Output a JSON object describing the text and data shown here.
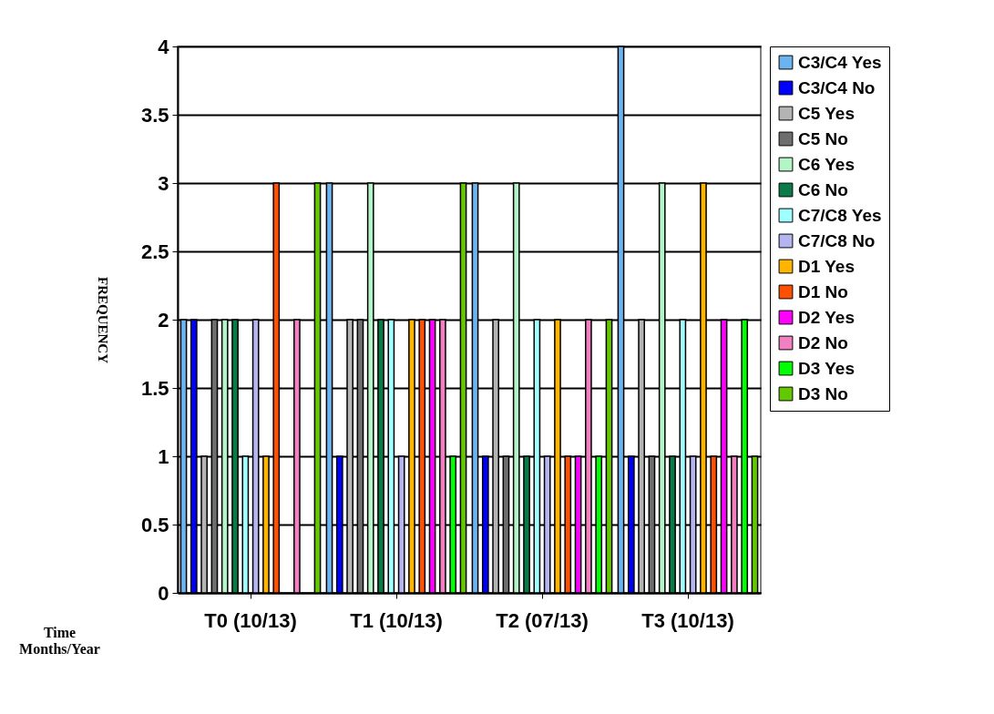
{
  "chart_data": {
    "type": "bar",
    "ylabel": "FREQUENCY",
    "xlabel": "Time\nMonths/Year",
    "categories": [
      "T0 (10/13)",
      "T1 (10/13)",
      "T2 (07/13)",
      "T3 (10/13)"
    ],
    "series": [
      {
        "name": "C3/C4 Yes",
        "color": "#6cb4f0",
        "values": [
          2,
          3,
          3,
          4
        ]
      },
      {
        "name": "C3/C4 No",
        "color": "#0000ff",
        "values": [
          2,
          1,
          1,
          1
        ]
      },
      {
        "name": "C5 Yes",
        "color": "#b4b4b4",
        "values": [
          1,
          2,
          2,
          2
        ]
      },
      {
        "name": "C5 No",
        "color": "#6e6e6e",
        "values": [
          2,
          2,
          1,
          1
        ]
      },
      {
        "name": "C6 Yes",
        "color": "#b4f5c8",
        "values": [
          2,
          3,
          3,
          3
        ]
      },
      {
        "name": "C6 No",
        "color": "#0a7a46",
        "values": [
          2,
          2,
          1,
          1
        ]
      },
      {
        "name": "C7/C8 Yes",
        "color": "#a0ffff",
        "values": [
          1,
          2,
          2,
          2
        ]
      },
      {
        "name": "C7/C8 No",
        "color": "#b4b4f0",
        "values": [
          2,
          1,
          1,
          1
        ]
      },
      {
        "name": "D1 Yes",
        "color": "#ffb400",
        "values": [
          1,
          2,
          2,
          3
        ]
      },
      {
        "name": "D1 No",
        "color": "#ff5000",
        "values": [
          3,
          2,
          1,
          1
        ]
      },
      {
        "name": "D2 Yes",
        "color": "#ff00ff",
        "values": [
          0,
          2,
          1,
          2
        ]
      },
      {
        "name": "D2 No",
        "color": "#f080c0",
        "values": [
          2,
          2,
          2,
          1
        ]
      },
      {
        "name": "D3 Yes",
        "color": "#00ff00",
        "values": [
          0,
          1,
          1,
          2
        ]
      },
      {
        "name": "D3 No",
        "color": "#64c800",
        "values": [
          3,
          3,
          2,
          1
        ]
      }
    ],
    "ylim": [
      0,
      4
    ],
    "yticks": [
      0,
      0.5,
      1,
      1.5,
      2,
      2.5,
      3,
      3.5,
      4
    ],
    "grid": "y",
    "legend": "right"
  }
}
